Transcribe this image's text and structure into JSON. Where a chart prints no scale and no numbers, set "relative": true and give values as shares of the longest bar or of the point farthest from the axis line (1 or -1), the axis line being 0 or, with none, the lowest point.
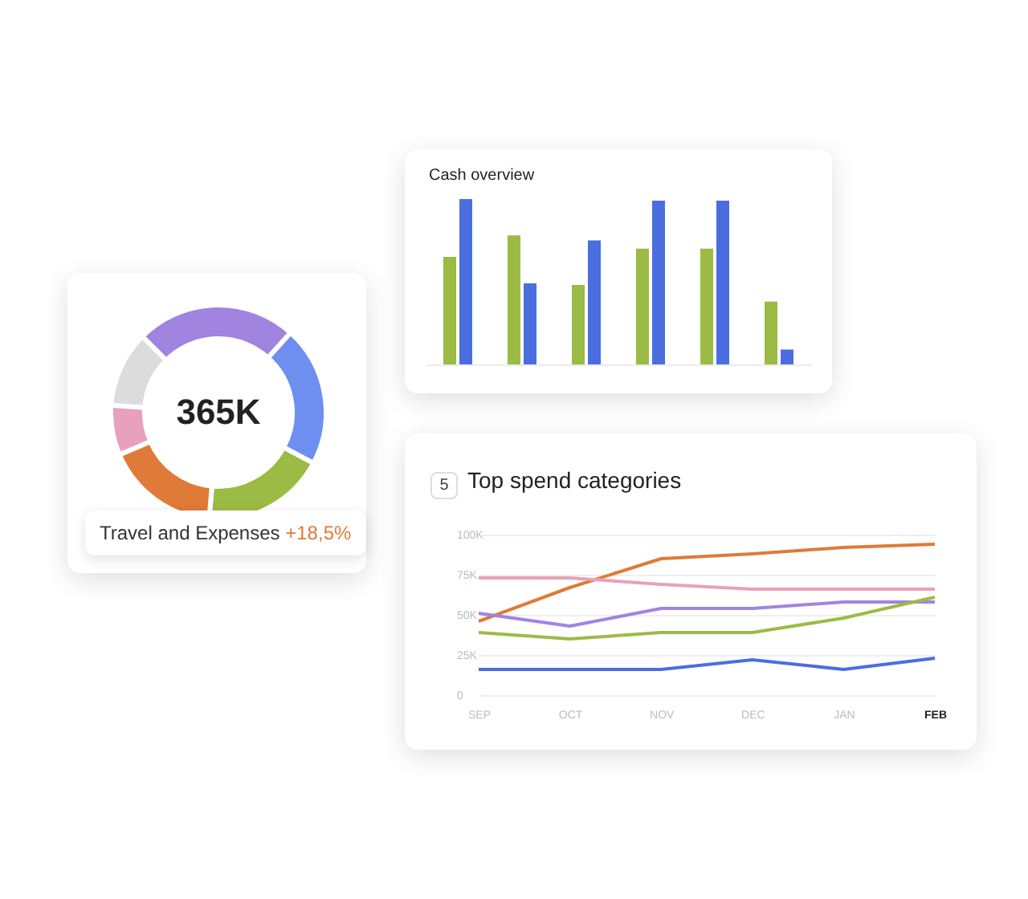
{
  "chart_data": [
    {
      "type": "donut",
      "title": "365K",
      "annotations": [
        "Travel and Expenses +18,5%"
      ],
      "categories": [
        null,
        null,
        null,
        null,
        null,
        null
      ],
      "values": [
        24.2,
        21.1,
        18.6,
        17.2,
        7.5,
        11.4
      ],
      "colors": [
        "#a084e0",
        "#6f8ff0",
        "#9bbb45",
        "#e07a38",
        "#e8a0bc",
        "#dcdcdc"
      ]
    },
    {
      "type": "bar",
      "title": "Cash overview",
      "relative": true,
      "categories": [
        null,
        null,
        null,
        null,
        null,
        null
      ],
      "series": [
        {
          "color": "#9bbb45",
          "values": [
            0.65,
            0.78,
            0.48,
            0.7,
            0.7,
            0.38
          ]
        },
        {
          "color": "#4a6ee0",
          "values": [
            1.0,
            0.49,
            0.75,
            0.99,
            0.99,
            0.09
          ]
        }
      ]
    },
    {
      "type": "line",
      "title": "Top spend categories",
      "annotations": [
        "5"
      ],
      "categories": [
        "SEP",
        "OCT",
        "NOV",
        "DEC",
        "JAN",
        "FEB"
      ],
      "ylim": [
        0,
        100
      ],
      "yticks": [
        0,
        {
          "value": 25,
          "label": "25K"
        },
        {
          "value": 50,
          "label": "50K"
        },
        {
          "value": 75,
          "label": "75K"
        },
        {
          "value": 100,
          "label": "100K"
        }
      ],
      "grid": "y",
      "legend": false,
      "series": [
        {
          "color": "#e07a38",
          "values": [
            46,
            67,
            85,
            88,
            92,
            94
          ]
        },
        {
          "color": "#e8a0bc",
          "values": [
            73,
            73,
            69,
            66,
            66,
            66
          ]
        },
        {
          "color": "#a084e0",
          "values": [
            51,
            43,
            54,
            54,
            58,
            58
          ]
        },
        {
          "color": "#9bbb45",
          "values": [
            39,
            35,
            39,
            39,
            48,
            61
          ]
        },
        {
          "color": "#4a6ee0",
          "values": [
            16,
            16,
            16,
            22,
            16,
            23
          ]
        }
      ]
    }
  ]
}
